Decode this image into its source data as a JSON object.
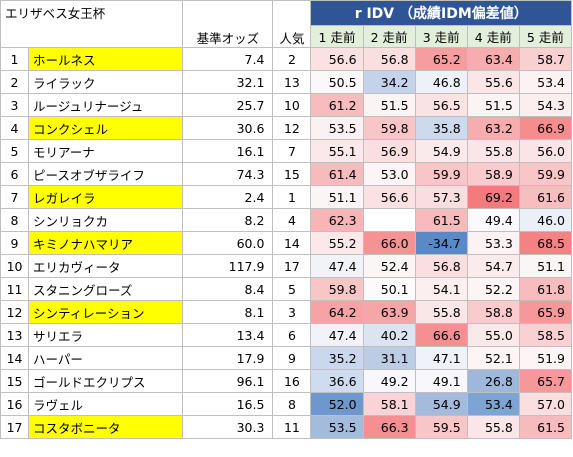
{
  "title": "エリザベス女王杯",
  "headers": {
    "odds": "基準オッズ",
    "popularity": "人気",
    "idm_band": "r IDV （成績IDM偏差値）",
    "runs": [
      "1 走前",
      "2 走前",
      "3 走前",
      "4 走前",
      "5 走前"
    ]
  },
  "rows": [
    {
      "no": "1",
      "name": "ホールネス",
      "hl": true,
      "odds": "7.4",
      "pop": "2",
      "vals": [
        "56.6",
        "56.8",
        "65.2",
        "63.4",
        "58.7"
      ],
      "bg": [
        "#fbe1e2",
        "#fbdfe0",
        "#f69d9f",
        "#f7adaf",
        "#f9d0d2"
      ]
    },
    {
      "no": "2",
      "name": "ライラック",
      "hl": false,
      "odds": "32.1",
      "pop": "13",
      "vals": [
        "50.5",
        "34.2",
        "46.8",
        "55.6",
        "53.4"
      ],
      "bg": [
        "#fbf8fa",
        "#c5d3ea",
        "#eef1f8",
        "#fbe6e7",
        "#fcf2f3"
      ]
    },
    {
      "no": "3",
      "name": "ルージュリナージュ",
      "hl": false,
      "odds": "25.7",
      "pop": "10",
      "vals": [
        "61.2",
        "51.5",
        "56.5",
        "51.5",
        "54.3"
      ],
      "bg": [
        "#f8bcbe",
        "#fbf3f4",
        "#fbe2e3",
        "#fbf3f4",
        "#fbeeef"
      ]
    },
    {
      "no": "4",
      "name": "コンクシェル",
      "hl": true,
      "odds": "30.6",
      "pop": "12",
      "vals": [
        "53.5",
        "59.8",
        "35.8",
        "63.2",
        "66.9"
      ],
      "bg": [
        "#fbf1f2",
        "#f9c6c8",
        "#cdd9ed",
        "#f7adaf",
        "#f58c8e"
      ]
    },
    {
      "no": "5",
      "name": "モリアーナ",
      "hl": false,
      "odds": "16.1",
      "pop": "7",
      "vals": [
        "55.1",
        "56.9",
        "54.9",
        "55.8",
        "56.0"
      ],
      "bg": [
        "#fbe9ea",
        "#fbdfe0",
        "#fbeaeb",
        "#fbe6e7",
        "#fbe4e5"
      ]
    },
    {
      "no": "6",
      "name": "ピースオブザライフ",
      "hl": false,
      "odds": "74.3",
      "pop": "15",
      "vals": [
        "61.4",
        "53.0",
        "59.9",
        "58.9",
        "59.9"
      ],
      "bg": [
        "#f8bbbd",
        "#fcf4f5",
        "#f9c6c8",
        "#f9cbcd",
        "#f9c6c8"
      ]
    },
    {
      "no": "7",
      "name": "レガレイラ",
      "hl": true,
      "odds": "2.4",
      "pop": "1",
      "vals": [
        "51.1",
        "56.6",
        "57.3",
        "69.2",
        "61.6"
      ],
      "bg": [
        "#fbf5f6",
        "#fbe1e2",
        "#fadddf",
        "#f47b7d",
        "#f8bdbf"
      ]
    },
    {
      "no": "8",
      "name": "シンリョクカ",
      "hl": false,
      "odds": "8.2",
      "pop": "4",
      "vals": [
        "62.3",
        "",
        "61.5",
        "49.4",
        "46.0"
      ],
      "bg": [
        "#f8b4b6",
        "#ffffff",
        "#f8bbbd",
        "#fafafd",
        "#ebeff8"
      ]
    },
    {
      "no": "9",
      "name": "キミノナハマリア",
      "hl": true,
      "odds": "60.0",
      "pop": "14",
      "vals": [
        "55.2",
        "66.0",
        "-34.7",
        "53.3",
        "68.5"
      ],
      "bg": [
        "#fbe9ea",
        "#f59294",
        "#5a8ac6",
        "#fcf2f3",
        "#f48183"
      ]
    },
    {
      "no": "10",
      "name": "エリカヴィータ",
      "hl": false,
      "odds": "117.9",
      "pop": "17",
      "vals": [
        "47.4",
        "52.4",
        "56.8",
        "54.7",
        "51.1"
      ],
      "bg": [
        "#f1f3f9",
        "#fcf5f6",
        "#fbdfe0",
        "#fbebec",
        "#fbf5f6"
      ]
    },
    {
      "no": "11",
      "name": "スタニングローズ",
      "hl": false,
      "odds": "8.4",
      "pop": "5",
      "vals": [
        "59.8",
        "50.1",
        "54.1",
        "52.2",
        "61.8"
      ],
      "bg": [
        "#f9c6c8",
        "#fcfafb",
        "#fbeff0",
        "#fcf4f5",
        "#f8bcbe"
      ]
    },
    {
      "no": "12",
      "name": "シンティレーション",
      "hl": true,
      "odds": "8.1",
      "pop": "3",
      "vals": [
        "64.2",
        "63.9",
        "55.8",
        "58.8",
        "65.9"
      ],
      "bg": [
        "#f7a3a5",
        "#f7a6a8",
        "#fbe6e7",
        "#f9cbcd",
        "#f69799"
      ]
    },
    {
      "no": "13",
      "name": "サリエラ",
      "hl": false,
      "odds": "13.4",
      "pop": "6",
      "vals": [
        "47.4",
        "40.2",
        "66.6",
        "55.0",
        "58.5"
      ],
      "bg": [
        "#f1f3f9",
        "#dce4f2",
        "#f58f91",
        "#fbe9ea",
        "#f9d1d3"
      ]
    },
    {
      "no": "14",
      "name": "ハーパー",
      "hl": false,
      "odds": "17.9",
      "pop": "9",
      "vals": [
        "35.2",
        "31.1",
        "47.1",
        "52.1",
        "51.9"
      ],
      "bg": [
        "#cad7ec",
        "#bccce5",
        "#f0f2f9",
        "#fcf4f5",
        "#fcf4f5"
      ]
    },
    {
      "no": "15",
      "name": "ゴールドエクリプス",
      "hl": false,
      "odds": "96.1",
      "pop": "16",
      "vals": [
        "36.6",
        "49.2",
        "49.1",
        "26.8",
        "65.7"
      ],
      "bg": [
        "#cfdbee",
        "#f8f8fc",
        "#f8f8fc",
        "#9fb7db",
        "#f69799"
      ]
    },
    {
      "no": "16",
      "name": "ラヴェル",
      "hl": false,
      "odds": "16.5",
      "pop": "8",
      "vals": [
        "52.0",
        "58.1",
        "54.9",
        "53.4",
        "57.0"
      ],
      "bg": [
        "#6f97cf",
        "#f9d3d5",
        "#a4bbdc",
        "#7ea3d5",
        "#fbdfe0"
      ]
    },
    {
      "no": "17",
      "name": "コスタボニータ",
      "hl": true,
      "odds": "30.3",
      "pop": "11",
      "vals": [
        "53.5",
        "66.3",
        "59.5",
        "55.8",
        "61.5"
      ],
      "bg": [
        "#a4bbdc",
        "#f58f91",
        "#f9c6c8",
        "#fbe6e7",
        "#f8bbbd"
      ]
    }
  ]
}
